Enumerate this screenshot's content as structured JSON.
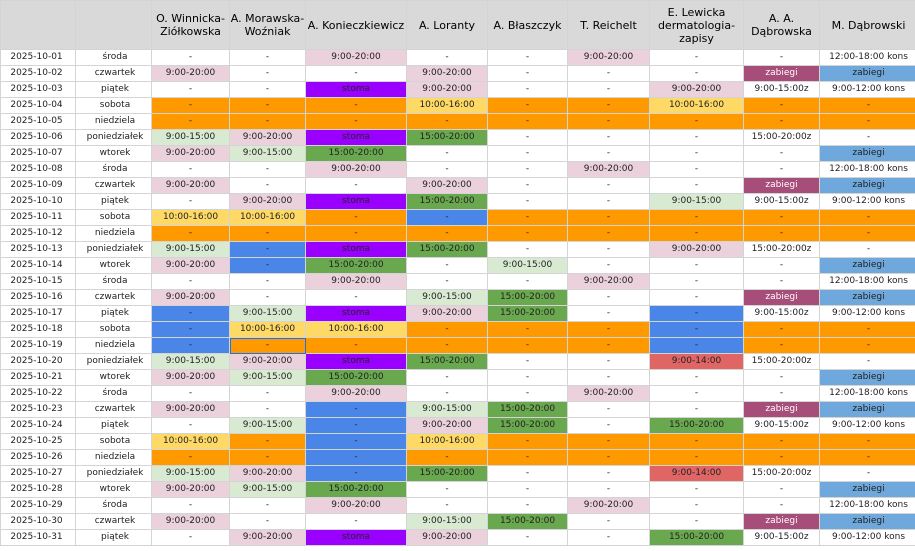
{
  "headers": [
    "",
    "",
    "O. Winnicka-Ziółkowska",
    "A. Morawska-Woźniak",
    "A. Konieczkiewicz",
    "A. Loranty",
    "A. Błaszczyk",
    "T. Reichelt",
    "E. Lewicka dermatologia-zapisy",
    "A. A. Dąbrowska",
    "M. Dąbrowski"
  ],
  "rows": [
    {
      "date": "2025-10-01",
      "day": "środa",
      "cells": [
        [
          "-",
          "e"
        ],
        [
          "-",
          "e"
        ],
        [
          "9:00-20:00",
          "p"
        ],
        [
          "-",
          "e"
        ],
        [
          "-",
          "e"
        ],
        [
          "9:00-20:00",
          "p"
        ],
        [
          "-",
          "e"
        ],
        [
          "-",
          "e"
        ],
        [
          "12:00-18:00 kons",
          "W"
        ]
      ]
    },
    {
      "date": "2025-10-02",
      "day": "czwartek",
      "cells": [
        [
          "9:00-20:00",
          "p"
        ],
        [
          "-",
          "e"
        ],
        [
          "-",
          "e"
        ],
        [
          "9:00-20:00",
          "p"
        ],
        [
          "-",
          "e"
        ],
        [
          "-",
          "e"
        ],
        [
          "-",
          "e"
        ],
        [
          "zabiegi",
          "m"
        ],
        [
          "zabiegi",
          "b"
        ]
      ]
    },
    {
      "date": "2025-10-03",
      "day": "piątek",
      "cells": [
        [
          "-",
          "e"
        ],
        [
          "-",
          "e"
        ],
        [
          "stoma",
          "v"
        ],
        [
          "9:00-20:00",
          "p"
        ],
        [
          "-",
          "e"
        ],
        [
          "-",
          "e"
        ],
        [
          "9:00-20:00",
          "p"
        ],
        [
          "9:00-15:00z",
          "e"
        ],
        [
          "9:00-12:00 kons",
          "W"
        ]
      ]
    },
    {
      "date": "2025-10-04",
      "day": "sobota",
      "cells": [
        [
          "-",
          "o"
        ],
        [
          "-",
          "o"
        ],
        [
          "-",
          "o"
        ],
        [
          "10:00-16:00",
          "y"
        ],
        [
          "-",
          "o"
        ],
        [
          "-",
          "o"
        ],
        [
          "10:00-16:00",
          "y"
        ],
        [
          "-",
          "o"
        ],
        [
          "-",
          "o"
        ]
      ]
    },
    {
      "date": "2025-10-05",
      "day": "niedziela",
      "cells": [
        [
          "-",
          "o"
        ],
        [
          "-",
          "o"
        ],
        [
          "-",
          "o"
        ],
        [
          "-",
          "o"
        ],
        [
          "-",
          "o"
        ],
        [
          "-",
          "o"
        ],
        [
          "-",
          "o"
        ],
        [
          "-",
          "o"
        ],
        [
          "-",
          "o"
        ]
      ]
    },
    {
      "date": "2025-10-06",
      "day": "poniedziałek",
      "cells": [
        [
          "9:00-15:00",
          "g"
        ],
        [
          "9:00-20:00",
          "p"
        ],
        [
          "stoma",
          "v"
        ],
        [
          "15:00-20:00",
          "G"
        ],
        [
          "-",
          "e"
        ],
        [
          "-",
          "e"
        ],
        [
          "-",
          "e"
        ],
        [
          "15:00-20:00z",
          "e"
        ],
        [
          "-",
          "e"
        ]
      ]
    },
    {
      "date": "2025-10-07",
      "day": "wtorek",
      "cells": [
        [
          "9:00-20:00",
          "p"
        ],
        [
          "9:00-15:00",
          "g"
        ],
        [
          "15:00-20:00",
          "G"
        ],
        [
          "-",
          "e"
        ],
        [
          "-",
          "e"
        ],
        [
          "-",
          "e"
        ],
        [
          "-",
          "e"
        ],
        [
          "-",
          "e"
        ],
        [
          "zabiegi",
          "b"
        ]
      ]
    },
    {
      "date": "2025-10-08",
      "day": "środa",
      "cells": [
        [
          "-",
          "e"
        ],
        [
          "-",
          "e"
        ],
        [
          "9:00-20:00",
          "p"
        ],
        [
          "-",
          "e"
        ],
        [
          "-",
          "e"
        ],
        [
          "9:00-20:00",
          "p"
        ],
        [
          "-",
          "e"
        ],
        [
          "-",
          "e"
        ],
        [
          "12:00-18:00 kons",
          "W"
        ]
      ]
    },
    {
      "date": "2025-10-09",
      "day": "czwartek",
      "cells": [
        [
          "9:00-20:00",
          "p"
        ],
        [
          "-",
          "e"
        ],
        [
          "-",
          "e"
        ],
        [
          "9:00-20:00",
          "p"
        ],
        [
          "-",
          "e"
        ],
        [
          "-",
          "e"
        ],
        [
          "-",
          "e"
        ],
        [
          "zabiegi",
          "m"
        ],
        [
          "zabiegi",
          "b"
        ]
      ]
    },
    {
      "date": "2025-10-10",
      "day": "piątek",
      "cells": [
        [
          "-",
          "e"
        ],
        [
          "9:00-20:00",
          "p"
        ],
        [
          "stoma",
          "v"
        ],
        [
          "15:00-20:00",
          "G"
        ],
        [
          "-",
          "e"
        ],
        [
          "-",
          "e"
        ],
        [
          "9:00-15:00",
          "g"
        ],
        [
          "9:00-15:00z",
          "e"
        ],
        [
          "9:00-12:00 kons",
          "W"
        ]
      ]
    },
    {
      "date": "2025-10-11",
      "day": "sobota",
      "cells": [
        [
          "10:00-16:00",
          "y"
        ],
        [
          "10:00-16:00",
          "y"
        ],
        [
          "-",
          "o"
        ],
        [
          "-",
          "B"
        ],
        [
          "-",
          "o"
        ],
        [
          "-",
          "o"
        ],
        [
          "-",
          "o"
        ],
        [
          "-",
          "o"
        ],
        [
          "-",
          "o"
        ]
      ]
    },
    {
      "date": "2025-10-12",
      "day": "niedziela",
      "cells": [
        [
          "-",
          "o"
        ],
        [
          "-",
          "o"
        ],
        [
          "-",
          "o"
        ],
        [
          "-",
          "o"
        ],
        [
          "-",
          "o"
        ],
        [
          "-",
          "o"
        ],
        [
          "-",
          "o"
        ],
        [
          "-",
          "o"
        ],
        [
          "-",
          "o"
        ]
      ]
    },
    {
      "date": "2025-10-13",
      "day": "poniedziałek",
      "cells": [
        [
          "9:00-15:00",
          "g"
        ],
        [
          "-",
          "B"
        ],
        [
          "stoma",
          "v"
        ],
        [
          "15:00-20:00",
          "G"
        ],
        [
          "-",
          "e"
        ],
        [
          "-",
          "e"
        ],
        [
          "9:00-20:00",
          "p"
        ],
        [
          "15:00-20:00z",
          "e"
        ],
        [
          "-",
          "e"
        ]
      ]
    },
    {
      "date": "2025-10-14",
      "day": "wtorek",
      "cells": [
        [
          "9:00-20:00",
          "p"
        ],
        [
          "-",
          "B"
        ],
        [
          "15:00-20:00",
          "G"
        ],
        [
          "-",
          "e"
        ],
        [
          "9:00-15:00",
          "g"
        ],
        [
          "-",
          "e"
        ],
        [
          "-",
          "e"
        ],
        [
          "-",
          "e"
        ],
        [
          "zabiegi",
          "b"
        ]
      ]
    },
    {
      "date": "2025-10-15",
      "day": "środa",
      "cells": [
        [
          "-",
          "e"
        ],
        [
          "-",
          "e"
        ],
        [
          "9:00-20:00",
          "p"
        ],
        [
          "-",
          "e"
        ],
        [
          "-",
          "e"
        ],
        [
          "9:00-20:00",
          "p"
        ],
        [
          "-",
          "e"
        ],
        [
          "-",
          "e"
        ],
        [
          "12:00-18:00 kons",
          "W"
        ]
      ]
    },
    {
      "date": "2025-10-16",
      "day": "czwartek",
      "cells": [
        [
          "9:00-20:00",
          "p"
        ],
        [
          "-",
          "e"
        ],
        [
          "-",
          "e"
        ],
        [
          "9:00-15:00",
          "g"
        ],
        [
          "15:00-20:00",
          "G"
        ],
        [
          "-",
          "e"
        ],
        [
          "-",
          "e"
        ],
        [
          "zabiegi",
          "m"
        ],
        [
          "zabiegi",
          "b"
        ]
      ]
    },
    {
      "date": "2025-10-17",
      "day": "piątek",
      "cells": [
        [
          "-",
          "B"
        ],
        [
          "9:00-15:00",
          "g"
        ],
        [
          "stoma",
          "v"
        ],
        [
          "9:00-20:00",
          "p"
        ],
        [
          "15:00-20:00",
          "G"
        ],
        [
          "-",
          "e"
        ],
        [
          "-",
          "B"
        ],
        [
          "9:00-15:00z",
          "e"
        ],
        [
          "9:00-12:00 kons",
          "W"
        ]
      ]
    },
    {
      "date": "2025-10-18",
      "day": "sobota",
      "cells": [
        [
          "-",
          "B"
        ],
        [
          "10:00-16:00",
          "y"
        ],
        [
          "10:00-16:00",
          "y"
        ],
        [
          "-",
          "o"
        ],
        [
          "-",
          "o"
        ],
        [
          "-",
          "o"
        ],
        [
          "-",
          "B"
        ],
        [
          "-",
          "o"
        ],
        [
          "-",
          "o"
        ]
      ]
    },
    {
      "date": "2025-10-19",
      "day": "niedziela",
      "cells": [
        [
          "-",
          "B"
        ],
        [
          "-",
          "o"
        ],
        [
          "-",
          "o"
        ],
        [
          "-",
          "o"
        ],
        [
          "-",
          "o"
        ],
        [
          "-",
          "o"
        ],
        [
          "-",
          "B"
        ],
        [
          "-",
          "o"
        ],
        [
          "-",
          "o"
        ]
      ]
    },
    {
      "date": "2025-10-20",
      "day": "poniedziałek",
      "cells": [
        [
          "9:00-15:00",
          "g"
        ],
        [
          "9:00-20:00",
          "p"
        ],
        [
          "stoma",
          "v"
        ],
        [
          "15:00-20:00",
          "G"
        ],
        [
          "-",
          "e"
        ],
        [
          "-",
          "e"
        ],
        [
          "9:00-14:00",
          "r"
        ],
        [
          "15:00-20:00z",
          "e"
        ],
        [
          "-",
          "e"
        ]
      ]
    },
    {
      "date": "2025-10-21",
      "day": "wtorek",
      "cells": [
        [
          "9:00-20:00",
          "p"
        ],
        [
          "9:00-15:00",
          "g"
        ],
        [
          "15:00-20:00",
          "G"
        ],
        [
          "-",
          "e"
        ],
        [
          "-",
          "e"
        ],
        [
          "-",
          "e"
        ],
        [
          "-",
          "e"
        ],
        [
          "-",
          "e"
        ],
        [
          "zabiegi",
          "b"
        ]
      ]
    },
    {
      "date": "2025-10-22",
      "day": "środa",
      "cells": [
        [
          "-",
          "e"
        ],
        [
          "-",
          "e"
        ],
        [
          "9:00-20:00",
          "p"
        ],
        [
          "-",
          "e"
        ],
        [
          "-",
          "e"
        ],
        [
          "9:00-20:00",
          "p"
        ],
        [
          "-",
          "e"
        ],
        [
          "-",
          "e"
        ],
        [
          "12:00-18:00 kons",
          "W"
        ]
      ]
    },
    {
      "date": "2025-10-23",
      "day": "czwartek",
      "cells": [
        [
          "9:00-20:00",
          "p"
        ],
        [
          "-",
          "e"
        ],
        [
          "-",
          "B"
        ],
        [
          "9:00-15:00",
          "g"
        ],
        [
          "15:00-20:00",
          "G"
        ],
        [
          "-",
          "e"
        ],
        [
          "-",
          "e"
        ],
        [
          "zabiegi",
          "m"
        ],
        [
          "zabiegi",
          "b"
        ]
      ]
    },
    {
      "date": "2025-10-24",
      "day": "piątek",
      "cells": [
        [
          "-",
          "e"
        ],
        [
          "9:00-15:00",
          "g"
        ],
        [
          "-",
          "B"
        ],
        [
          "9:00-20:00",
          "p"
        ],
        [
          "15:00-20:00",
          "G"
        ],
        [
          "-",
          "e"
        ],
        [
          "15:00-20:00",
          "G"
        ],
        [
          "9:00-15:00z",
          "e"
        ],
        [
          "9:00-12:00 kons",
          "W"
        ]
      ]
    },
    {
      "date": "2025-10-25",
      "day": "sobota",
      "cells": [
        [
          "10:00-16:00",
          "y"
        ],
        [
          "-",
          "o"
        ],
        [
          "-",
          "B"
        ],
        [
          "10:00-16:00",
          "y"
        ],
        [
          "-",
          "o"
        ],
        [
          "-",
          "o"
        ],
        [
          "-",
          "o"
        ],
        [
          "-",
          "o"
        ],
        [
          "-",
          "o"
        ]
      ]
    },
    {
      "date": "2025-10-26",
      "day": "niedziela",
      "cells": [
        [
          "-",
          "o"
        ],
        [
          "-",
          "o"
        ],
        [
          "-",
          "B"
        ],
        [
          "-",
          "o"
        ],
        [
          "-",
          "o"
        ],
        [
          "-",
          "o"
        ],
        [
          "-",
          "o"
        ],
        [
          "-",
          "o"
        ],
        [
          "-",
          "o"
        ]
      ]
    },
    {
      "date": "2025-10-27",
      "day": "poniedziałek",
      "cells": [
        [
          "9:00-15:00",
          "g"
        ],
        [
          "9:00-20:00",
          "p"
        ],
        [
          "-",
          "B"
        ],
        [
          "15:00-20:00",
          "G"
        ],
        [
          "-",
          "e"
        ],
        [
          "-",
          "e"
        ],
        [
          "9:00-14:00",
          "r"
        ],
        [
          "15:00-20:00z",
          "e"
        ],
        [
          "-",
          "e"
        ]
      ]
    },
    {
      "date": "2025-10-28",
      "day": "wtorek",
      "cells": [
        [
          "9:00-20:00",
          "p"
        ],
        [
          "9:00-15:00",
          "g"
        ],
        [
          "15:00-20:00",
          "G"
        ],
        [
          "-",
          "e"
        ],
        [
          "-",
          "e"
        ],
        [
          "-",
          "e"
        ],
        [
          "-",
          "e"
        ],
        [
          "-",
          "e"
        ],
        [
          "zabiegi",
          "b"
        ]
      ]
    },
    {
      "date": "2025-10-29",
      "day": "środa",
      "cells": [
        [
          "-",
          "e"
        ],
        [
          "-",
          "e"
        ],
        [
          "9:00-20:00",
          "p"
        ],
        [
          "-",
          "e"
        ],
        [
          "-",
          "e"
        ],
        [
          "9:00-20:00",
          "p"
        ],
        [
          "-",
          "e"
        ],
        [
          "-",
          "e"
        ],
        [
          "12:00-18:00 kons",
          "W"
        ]
      ]
    },
    {
      "date": "2025-10-30",
      "day": "czwartek",
      "cells": [
        [
          "9:00-20:00",
          "p"
        ],
        [
          "-",
          "e"
        ],
        [
          "-",
          "e"
        ],
        [
          "9:00-15:00",
          "g"
        ],
        [
          "15:00-20:00",
          "G"
        ],
        [
          "-",
          "e"
        ],
        [
          "-",
          "e"
        ],
        [
          "zabiegi",
          "m"
        ],
        [
          "zabiegi",
          "b"
        ]
      ]
    },
    {
      "date": "2025-10-31",
      "day": "piątek",
      "cells": [
        [
          "-",
          "e"
        ],
        [
          "9:00-20:00",
          "p"
        ],
        [
          "stoma",
          "v"
        ],
        [
          "9:00-20:00",
          "p"
        ],
        [
          "-",
          "e"
        ],
        [
          "-",
          "e"
        ],
        [
          "15:00-20:00",
          "G"
        ],
        [
          "9:00-15:00z",
          "e"
        ],
        [
          "9:00-12:00 kons",
          "W"
        ]
      ]
    }
  ],
  "colors": {
    "e": "#ffffff",
    "p": "#ead1dc",
    "g": "#d9ead3",
    "o": "#ff9900",
    "y": "#ffd966",
    "v": "#9900ff",
    "G": "#6aa84f",
    "b": "#6fa8dc",
    "B": "#4a86e8",
    "m": "#a64d79",
    "r": "#e06666",
    "W": "#ffffff"
  },
  "selected_cell": {
    "row": 18,
    "col": 1
  }
}
